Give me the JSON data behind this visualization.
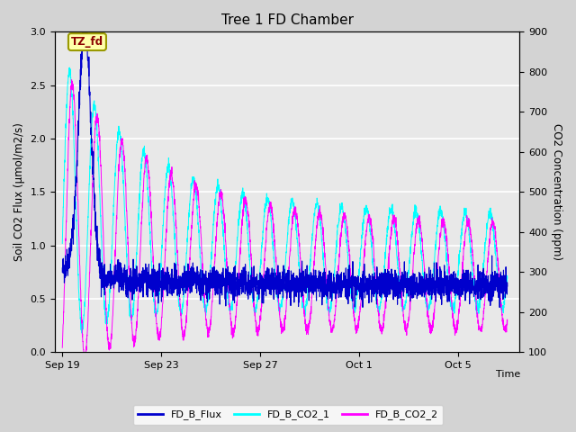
{
  "title": "Tree 1 FD Chamber",
  "ylabel_left": "Soil CO2 Flux (μmol/m2/s)",
  "ylabel_right": "CO2 Concentration (ppm)",
  "xlabel": "Time",
  "ylim_left": [
    0.0,
    3.0
  ],
  "ylim_right": [
    100,
    900
  ],
  "yticks_left": [
    0.0,
    0.5,
    1.0,
    1.5,
    2.0,
    2.5,
    3.0
  ],
  "yticks_right": [
    100,
    200,
    300,
    400,
    500,
    600,
    700,
    800,
    900
  ],
  "xtick_labels": [
    "Sep 19",
    "Sep 23",
    "Sep 27",
    "Oct 1",
    "Oct 5"
  ],
  "xtick_positions": [
    0,
    4,
    8,
    12,
    16
  ],
  "xlim": [
    -0.3,
    18.5
  ],
  "annotation_text": "TZ_fd",
  "flux_color": "#0000CD",
  "co2_1_color": "#00FFFF",
  "co2_2_color": "#FF00FF",
  "legend_labels": [
    "FD_B_Flux",
    "FD_B_CO2_1",
    "FD_B_CO2_2"
  ],
  "bg_color": "#d3d3d3",
  "plot_bg_color": "#e8e8e8",
  "grid_color": "#ffffff",
  "seed": 42,
  "n_points": 3000,
  "t_end": 18.0
}
